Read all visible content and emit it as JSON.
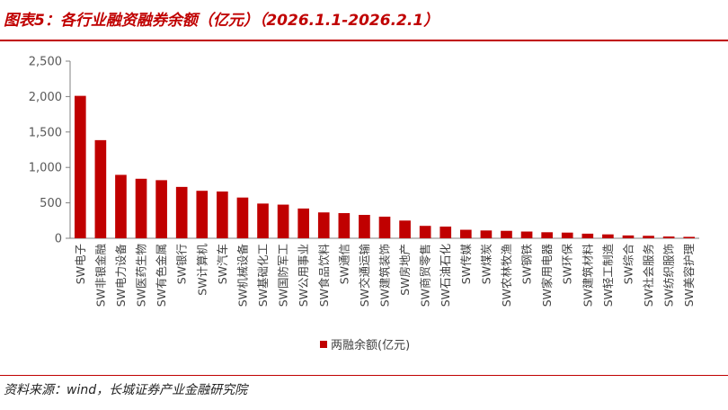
{
  "figure": {
    "title": "图表5：各行业融资融券余额（亿元）（2026.1.1-2026.2.1）",
    "source": "资料来源：wind，长城证券产业金融研究院"
  },
  "chart_data": {
    "type": "bar",
    "title": "",
    "xlabel": "",
    "ylabel": "",
    "ylim": [
      0,
      2500
    ],
    "yticks": [
      0,
      500,
      1000,
      1500,
      2000,
      2500
    ],
    "ytick_labels": [
      "0",
      "500",
      "1,000",
      "1,500",
      "2,000",
      "2,500"
    ],
    "grid": false,
    "legend_position": "bottom",
    "bar_color": "#c00000",
    "categories": [
      "SW电子",
      "SW非银金融",
      "SW电力设备",
      "SW医药生物",
      "SW有色金属",
      "SW银行",
      "SW计算机",
      "SW汽车",
      "SW机械设备",
      "SW基础化工",
      "SW国防军工",
      "SW公用事业",
      "SW食品饮料",
      "SW通信",
      "SW交通运输",
      "SW建筑装饰",
      "SW房地产",
      "SW商贸零售",
      "SW石油石化",
      "SW传媒",
      "SW煤炭",
      "SW农林牧渔",
      "SW钢铁",
      "SW家用电器",
      "SW环保",
      "SW建筑材料",
      "SW轻工制造",
      "SW综合",
      "SW社会服务",
      "SW纺织服饰",
      "SW美容护理"
    ],
    "series": [
      {
        "name": "两融余额(亿元)",
        "values": [
          2010,
          1385,
          895,
          840,
          820,
          725,
          670,
          660,
          575,
          490,
          475,
          420,
          365,
          355,
          330,
          305,
          250,
          175,
          165,
          120,
          110,
          105,
          95,
          85,
          80,
          65,
          55,
          40,
          35,
          25,
          20
        ]
      }
    ]
  }
}
